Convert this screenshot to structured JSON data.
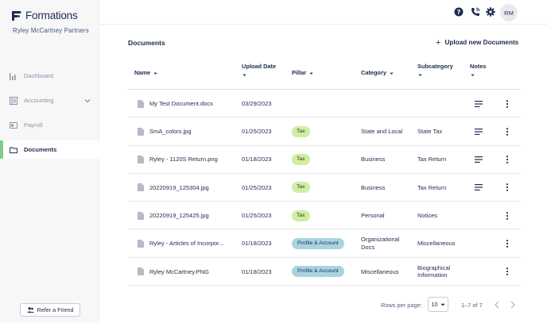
{
  "brand": {
    "name": "Formations",
    "company": "Ryley McCartney Partners"
  },
  "sidebar": {
    "items": [
      {
        "label": "Dashboard",
        "icon": "bar-chart-icon",
        "active": false
      },
      {
        "label": "Accounting",
        "icon": "ledger-icon",
        "active": false,
        "expandable": true
      },
      {
        "label": "Payroll",
        "icon": "payroll-icon",
        "active": false
      },
      {
        "label": "Documents",
        "icon": "folder-icon",
        "active": true
      }
    ],
    "refer_label": "Refer a Friend"
  },
  "topbar": {
    "icons": [
      "help-icon",
      "phone-icon",
      "settings-icon"
    ],
    "avatar_initials": "RM"
  },
  "main": {
    "title": "Documents",
    "upload_label": "Upload new Documents"
  },
  "table": {
    "columns": [
      "Name",
      "Upload Date",
      "Pillar",
      "Category",
      "Subcategory",
      "Notes"
    ],
    "rows": [
      {
        "name": "My Test Document.docx",
        "date": "03/29/2023",
        "pillar": "",
        "pillar_type": "",
        "category": "",
        "subcategory": "",
        "has_note": true
      },
      {
        "name": "SmA_colors.jpg",
        "date": "01/25/2023",
        "pillar": "Tax",
        "pillar_type": "tax",
        "category": "State and Local",
        "subcategory": "State Tax",
        "has_note": true
      },
      {
        "name": "Ryley - 1120S Return.png",
        "date": "01/18/2023",
        "pillar": "Tax",
        "pillar_type": "tax",
        "category": "Business",
        "subcategory": "Tax Return",
        "has_note": true
      },
      {
        "name": "20220919_125304.jpg",
        "date": "01/25/2023",
        "pillar": "Tax",
        "pillar_type": "tax",
        "category": "Business",
        "subcategory": "Tax Return",
        "has_note": true
      },
      {
        "name": "20220919_125425.jpg",
        "date": "01/25/2023",
        "pillar": "Tax",
        "pillar_type": "tax",
        "category": "Personal",
        "subcategory": "Notices",
        "has_note": false
      },
      {
        "name": "Ryley - Articles of Incorpor...",
        "date": "01/18/2023",
        "pillar": "Profile & Account",
        "pillar_type": "profile",
        "category": "Organizational Docs",
        "subcategory": "Miscellaneous",
        "has_note": false
      },
      {
        "name": "Ryley McCartney.PNG",
        "date": "01/18/2023",
        "pillar": "Profile & Account",
        "pillar_type": "profile",
        "category": "Miscellaneous",
        "subcategory": "Biographical Information",
        "has_note": false
      }
    ]
  },
  "pagination": {
    "rows_per_page_label": "Rows per page:",
    "rows_per_page": "10",
    "range": "1–7 of 7"
  },
  "colors": {
    "navy": "#1d2b4f",
    "active_accent": "#7fce88",
    "tax_pill": "#cfeea4",
    "profile_pill": "#a9d4df"
  }
}
